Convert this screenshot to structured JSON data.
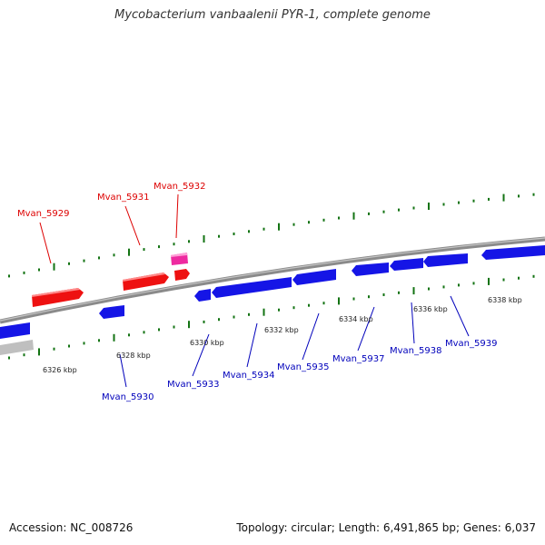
{
  "title": "Mycobacterium vanbaalenii PYR-1, complete genome",
  "footer": {
    "accession": "Accession: NC_008726",
    "summary": "Topology: circular; Length: 6,491,865 bp; Genes: 6,037"
  },
  "colors": {
    "forward_gene": "#ee1111",
    "forward_gene_highlight": "#ee2aa0",
    "reverse_gene": "#1515e6",
    "other_feature": "#bfbfbf",
    "backbone": "#8a8a8a",
    "tick": "#137313",
    "top_label": "#dd0000",
    "bottom_label": "#0000bb"
  },
  "scale_labels": [
    "6326 kbp",
    "6328 kbp",
    "6330 kbp",
    "6332 kbp",
    "6334 kbp",
    "6336 kbp",
    "6338 kbp"
  ],
  "top_genes": [
    "Mvan_5929",
    "Mvan_5931",
    "Mvan_5932"
  ],
  "bottom_genes": [
    "Mvan_5930",
    "Mvan_5933",
    "Mvan_5934",
    "Mvan_5935",
    "Mvan_5937",
    "Mvan_5938",
    "Mvan_5939"
  ]
}
